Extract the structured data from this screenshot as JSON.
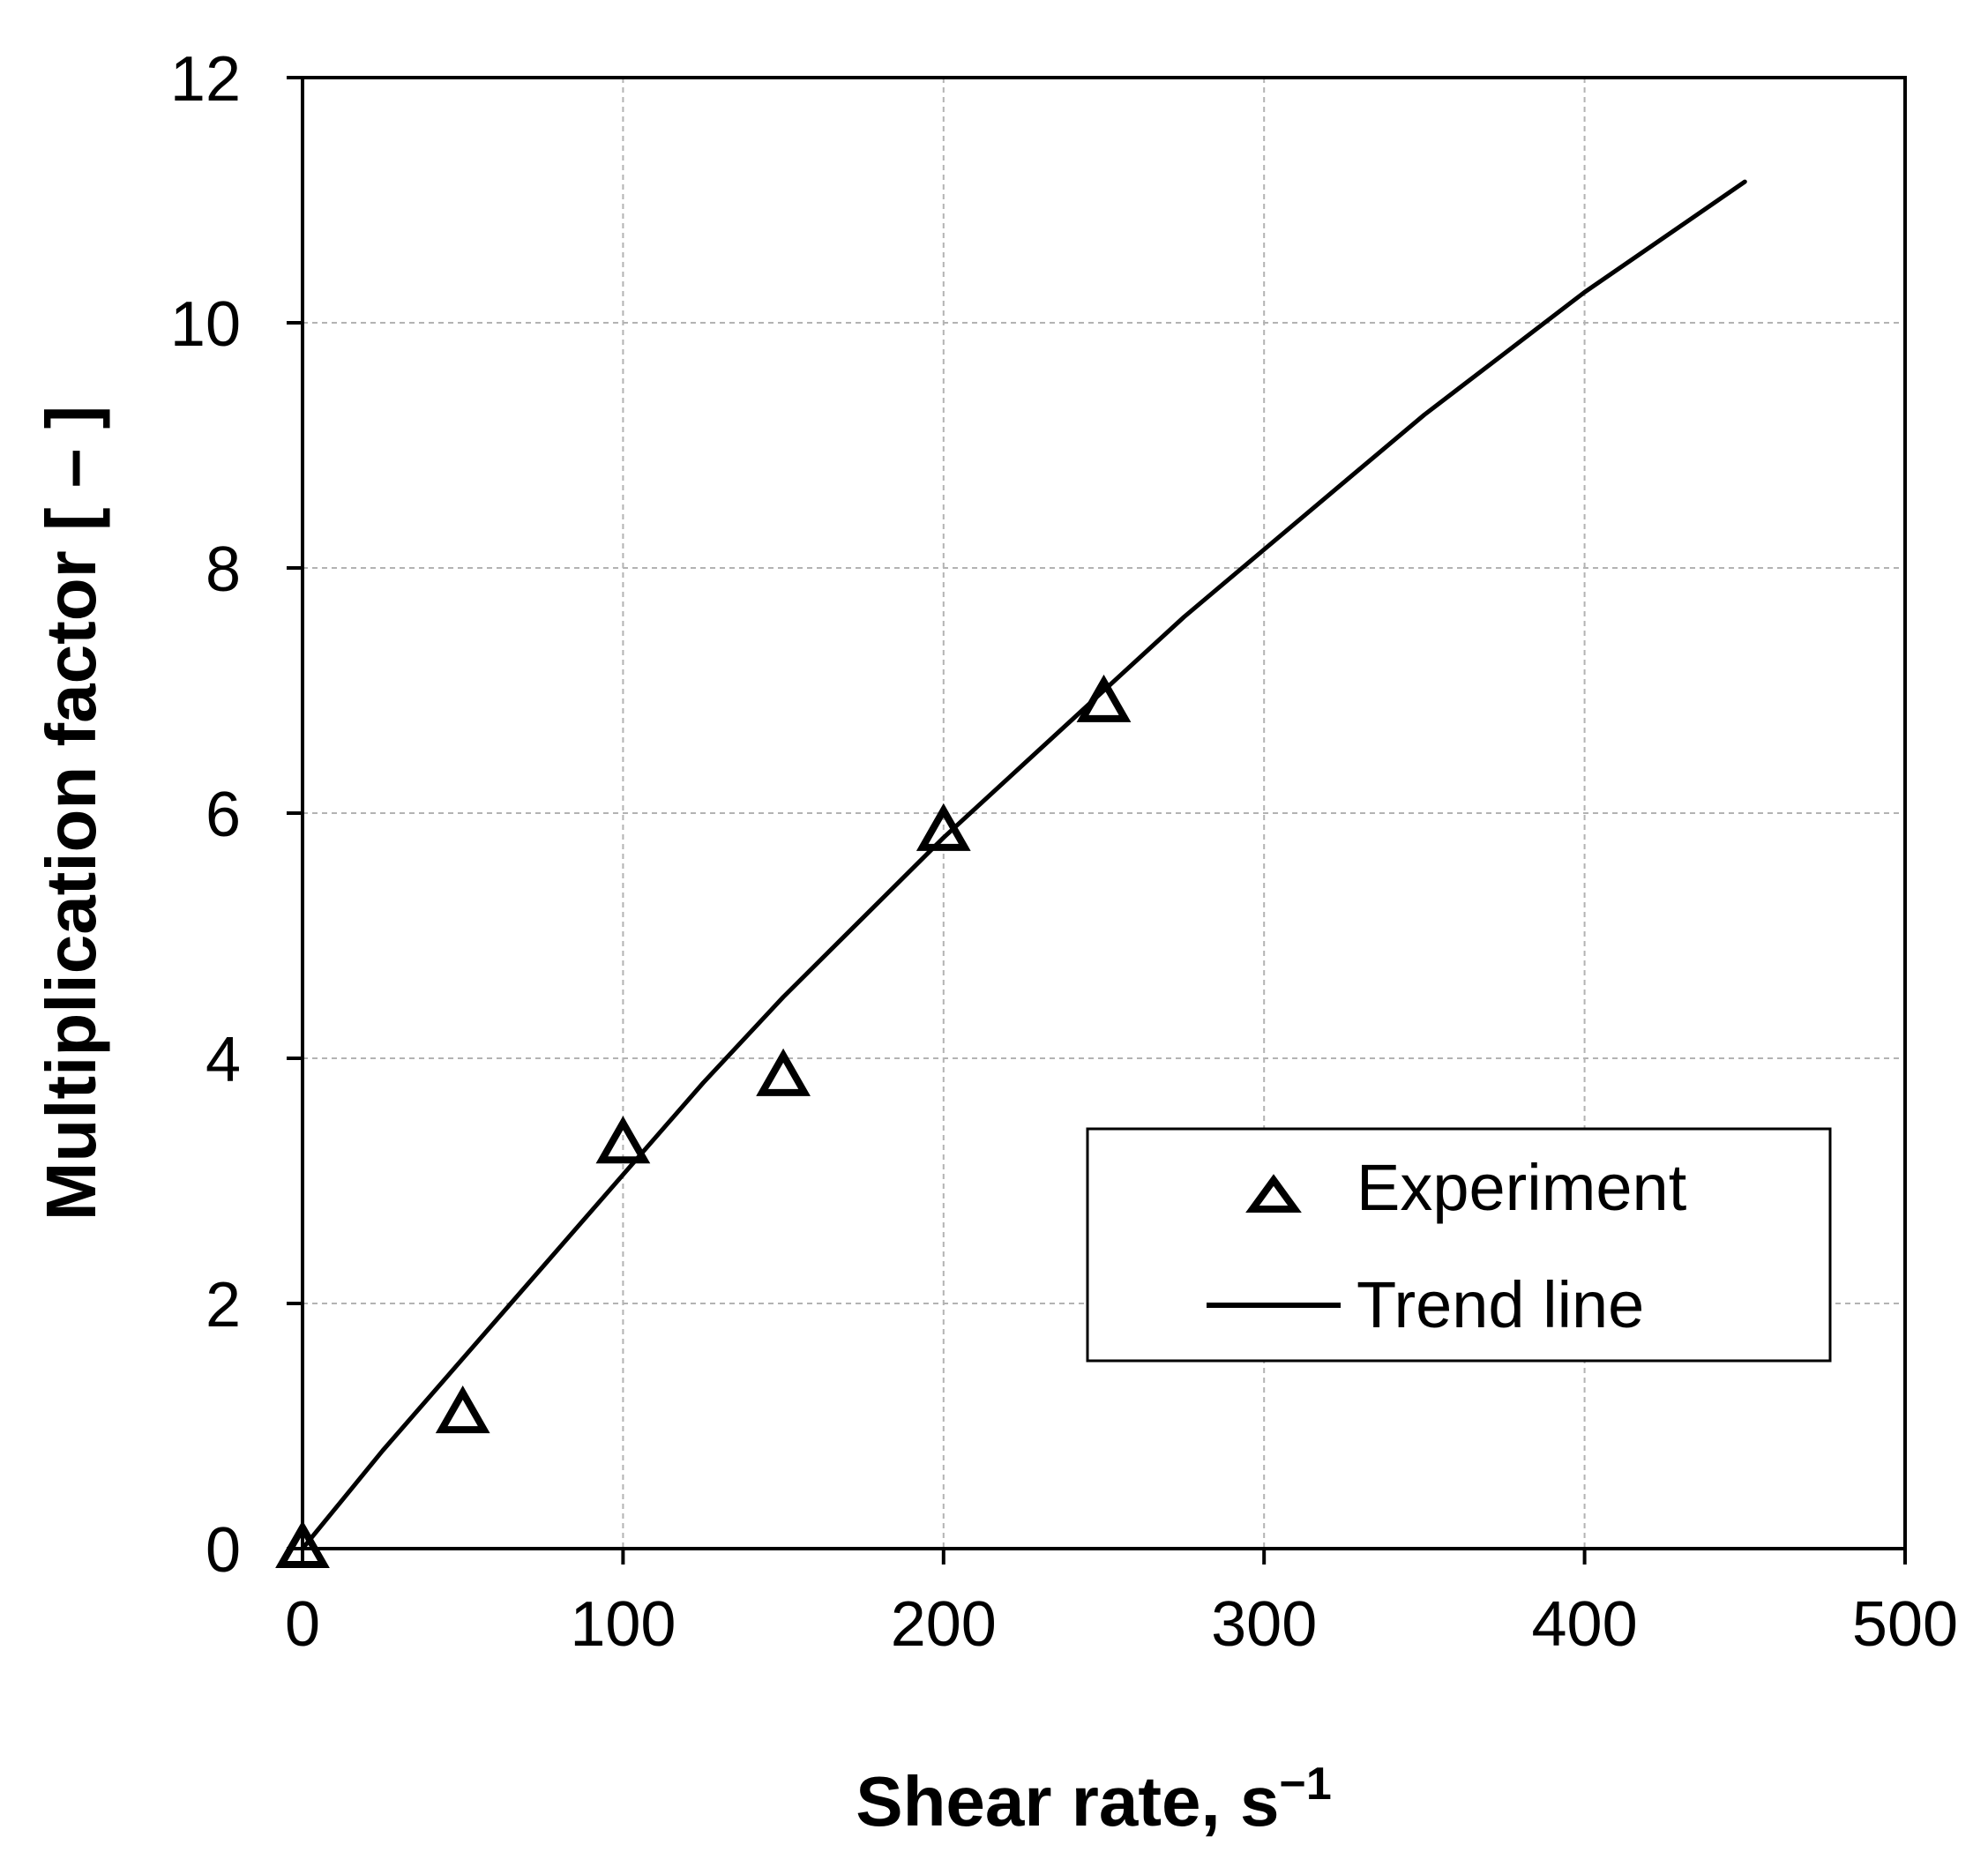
{
  "chart_data": {
    "type": "scatter",
    "title": "",
    "xlabel": "Shear rate, s",
    "xlabel_superscript": "−1",
    "ylabel": "Multiplication factor [ – ]",
    "xlim": [
      0,
      500
    ],
    "ylim": [
      0,
      12
    ],
    "xticks": [
      0,
      100,
      200,
      300,
      400,
      500
    ],
    "yticks": [
      0,
      2,
      4,
      6,
      8,
      10,
      12
    ],
    "xtick_labels": [
      "0",
      "100",
      "200",
      "300",
      "400",
      "500"
    ],
    "ytick_labels": [
      "0",
      "2",
      "4",
      "6",
      "8",
      "10",
      "12"
    ],
    "grid": true,
    "legend_position": "lower-right",
    "series": [
      {
        "name": "Experiment",
        "kind": "markers",
        "marker": "open-triangle",
        "color": "#000000",
        "x": [
          0,
          50,
          100,
          150,
          200,
          250
        ],
        "y": [
          0.0,
          1.1,
          3.3,
          3.85,
          5.85,
          6.9
        ]
      },
      {
        "name": "Trend line",
        "kind": "line",
        "color": "#000000",
        "x": [
          0,
          25,
          50,
          75,
          100,
          125,
          150,
          175,
          200,
          225,
          250,
          275,
          300,
          325,
          350,
          375,
          400,
          425,
          450
        ],
        "y": [
          0.0,
          0.8,
          1.55,
          2.3,
          3.05,
          3.8,
          4.5,
          5.15,
          5.8,
          6.4,
          7.0,
          7.6,
          8.15,
          8.7,
          9.25,
          9.75,
          10.25,
          10.7,
          11.15
        ]
      }
    ]
  }
}
